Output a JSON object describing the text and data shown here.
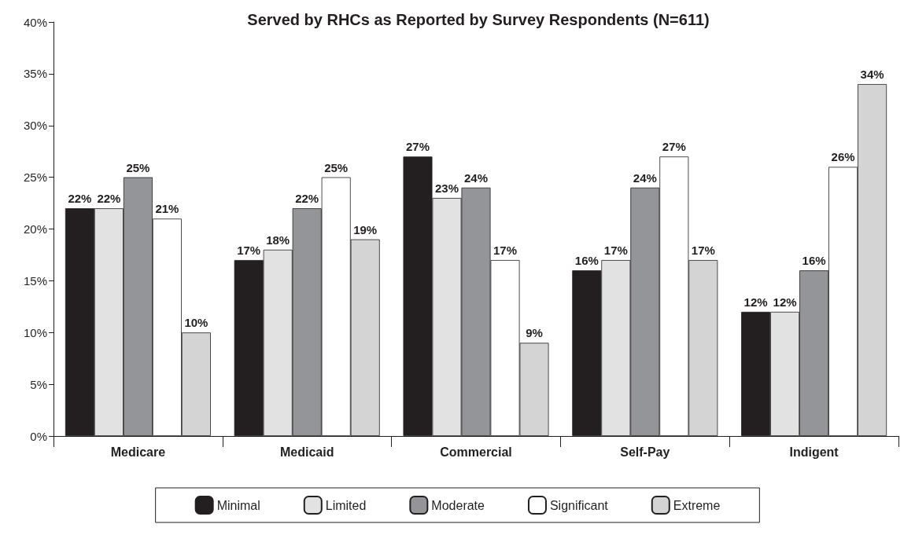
{
  "chart_data": {
    "type": "bar",
    "title": "Served by RHCs as Reported by Survey Respondents (N=611)",
    "categories": [
      "Medicare",
      "Medicaid",
      "Commercial",
      "Self-Pay",
      "Indigent"
    ],
    "series": [
      {
        "name": "Minimal",
        "color": "#231f20",
        "values": [
          22,
          17,
          27,
          16,
          12
        ],
        "value_labels": [
          "22%",
          "17%",
          "27%",
          "16%",
          "12%"
        ]
      },
      {
        "name": "Limited",
        "color": "#e2e2e2",
        "values": [
          22,
          18,
          23,
          17,
          12
        ],
        "value_labels": [
          "22%",
          "18%",
          "23%",
          "17%",
          "12%"
        ]
      },
      {
        "name": "Moderate",
        "color": "#939598",
        "values": [
          25,
          22,
          24,
          24,
          16
        ],
        "value_labels": [
          "25%",
          "22%",
          "24%",
          "24%",
          "16%"
        ]
      },
      {
        "name": "Significant",
        "color": "#ffffff",
        "values": [
          21,
          25,
          17,
          27,
          26
        ],
        "value_labels": [
          "21%",
          "25%",
          "17%",
          "27%",
          "26%"
        ]
      },
      {
        "name": "Extreme",
        "color": "#d4d4d4",
        "values": [
          10,
          19,
          9,
          17,
          34
        ],
        "value_labels": [
          "10%",
          "19%",
          "9%",
          "17%",
          "34%"
        ]
      }
    ],
    "ylim": [
      0,
      40
    ],
    "yticks": [
      {
        "value": 0,
        "label": "0%"
      },
      {
        "value": 5,
        "label": "5%"
      },
      {
        "value": 10,
        "label": "10%"
      },
      {
        "value": 15,
        "label": "15%"
      },
      {
        "value": 20,
        "label": "20%"
      },
      {
        "value": 25,
        "label": "25%"
      },
      {
        "value": 30,
        "label": "30%"
      },
      {
        "value": 35,
        "label": "35%"
      },
      {
        "value": 40,
        "label": "40%"
      }
    ],
    "grid": false,
    "legend": "bottom"
  }
}
